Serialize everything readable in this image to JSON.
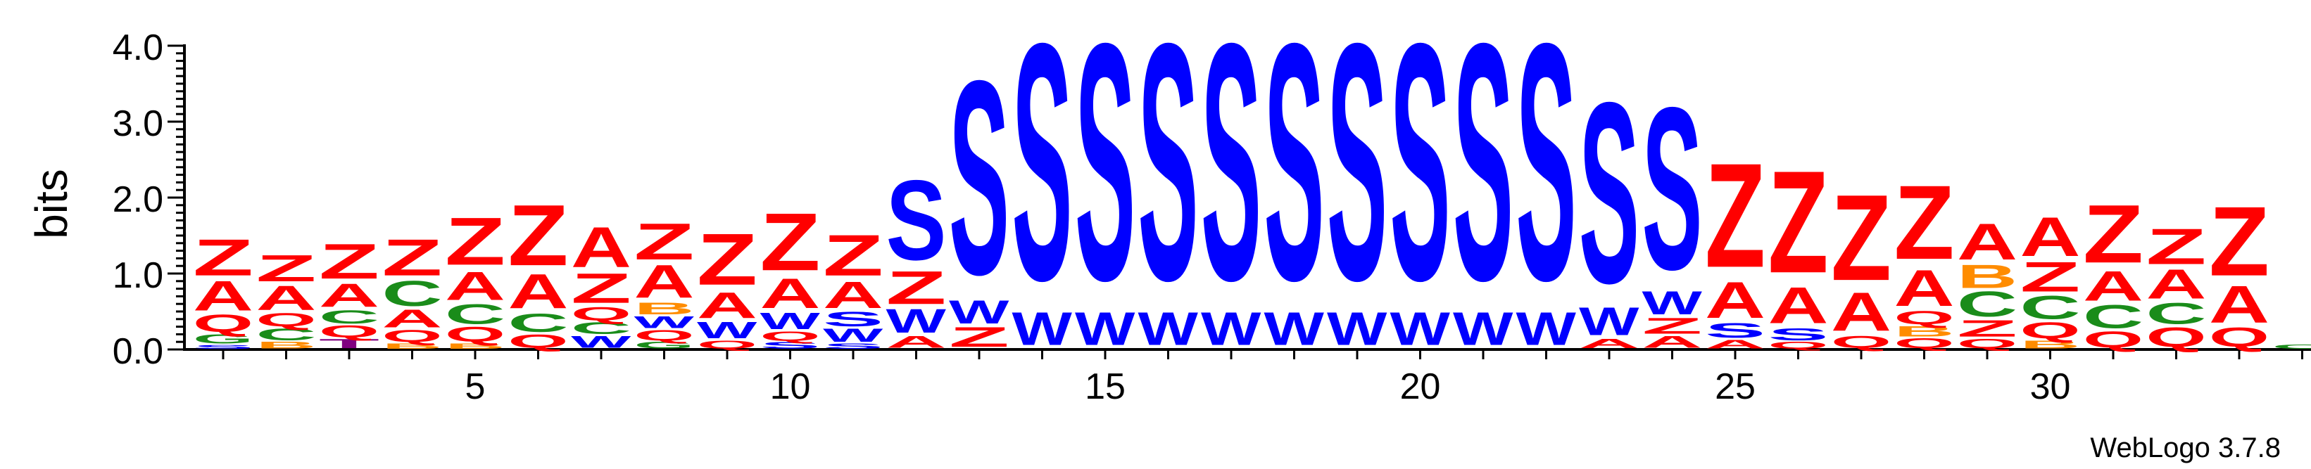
{
  "chart_data": {
    "type": "sequence-logo",
    "ylabel": "bits",
    "ylim": [
      0,
      4.0
    ],
    "y_ticks": [
      "0.0",
      "1.0",
      "2.0",
      "3.0",
      "4.0"
    ],
    "x_ticks": [
      "5",
      "10",
      "15",
      "20",
      "25",
      "30"
    ],
    "footer": "WebLogo 3.7.8",
    "colors": {
      "Z": "#ff0000",
      "A": "#ff0000",
      "Q": "#ff0000",
      "C": "#1a8c1a",
      "G": "#1a8c1a",
      "S": "#0000ff",
      "W": "#0000ff",
      "B": "#ff8c00",
      "T": "#800080",
      "other": "#ff8c00"
    },
    "positions": [
      {
        "pos": 1,
        "stack": [
          [
            "S",
            0.06
          ],
          [
            "G",
            0.14
          ],
          [
            "Q",
            0.26
          ],
          [
            "A",
            0.45
          ],
          [
            "Z",
            0.55
          ]
        ]
      },
      {
        "pos": 2,
        "stack": [
          [
            "B",
            0.1
          ],
          [
            "C",
            0.18
          ],
          [
            "Q",
            0.2
          ],
          [
            "A",
            0.37
          ],
          [
            "Z",
            0.4
          ]
        ]
      },
      {
        "pos": 3,
        "stack": [
          [
            "T",
            0.14
          ],
          [
            "Q",
            0.18
          ],
          [
            "C",
            0.2
          ],
          [
            "A",
            0.35
          ],
          [
            "Z",
            0.53
          ]
        ]
      },
      {
        "pos": 4,
        "stack": [
          [
            "B",
            0.08
          ],
          [
            "Q",
            0.18
          ],
          [
            "A",
            0.27
          ],
          [
            "C",
            0.38
          ],
          [
            "Z",
            0.55
          ]
        ]
      },
      {
        "pos": 5,
        "stack": [
          [
            "B",
            0.08
          ],
          [
            "Q",
            0.22
          ],
          [
            "C",
            0.3
          ],
          [
            "A",
            0.43
          ],
          [
            "Z",
            0.72
          ]
        ]
      },
      {
        "pos": 6,
        "stack": [
          [
            "Q",
            0.2
          ],
          [
            "C",
            0.28
          ],
          [
            "A",
            0.52
          ],
          [
            "Z",
            0.92
          ]
        ]
      },
      {
        "pos": 7,
        "stack": [
          [
            "W",
            0.18
          ],
          [
            "C",
            0.18
          ],
          [
            "Q",
            0.2
          ],
          [
            "Z",
            0.45
          ],
          [
            "A",
            0.61
          ]
        ]
      },
      {
        "pos": 8,
        "stack": [
          [
            "G",
            0.1
          ],
          [
            "Q",
            0.16
          ],
          [
            "W",
            0.18
          ],
          [
            "B",
            0.18
          ],
          [
            "A",
            0.5
          ],
          [
            "Z",
            0.55
          ]
        ]
      },
      {
        "pos": 9,
        "stack": [
          [
            "Q",
            0.12
          ],
          [
            "W",
            0.25
          ],
          [
            "A",
            0.39
          ],
          [
            "Z",
            0.78
          ]
        ]
      },
      {
        "pos": 10,
        "stack": [
          [
            "S",
            0.1
          ],
          [
            "Q",
            0.14
          ],
          [
            "W",
            0.25
          ],
          [
            "A",
            0.45
          ],
          [
            "Z",
            0.87
          ]
        ]
      },
      {
        "pos": 11,
        "stack": [
          [
            "S",
            0.08
          ],
          [
            "W",
            0.2
          ],
          [
            "S",
            0.22
          ],
          [
            "A",
            0.4
          ],
          [
            "Z",
            0.62
          ]
        ]
      },
      {
        "pos": 12,
        "stack": [
          [
            "A",
            0.18
          ],
          [
            "W",
            0.36
          ],
          [
            "Z",
            0.5
          ],
          [
            "S",
            1.21
          ]
        ]
      },
      {
        "pos": 13,
        "stack": [
          [
            "Z",
            0.3
          ],
          [
            "W",
            0.35
          ],
          [
            "S",
            2.94
          ]
        ]
      },
      {
        "pos": 14,
        "stack": [
          [
            "W",
            0.5
          ],
          [
            "S",
            3.59
          ]
        ]
      },
      {
        "pos": 15,
        "stack": [
          [
            "W",
            0.5
          ],
          [
            "S",
            3.59
          ]
        ]
      },
      {
        "pos": 16,
        "stack": [
          [
            "W",
            0.5
          ],
          [
            "S",
            3.59
          ]
        ]
      },
      {
        "pos": 17,
        "stack": [
          [
            "W",
            0.5
          ],
          [
            "S",
            3.59
          ]
        ]
      },
      {
        "pos": 18,
        "stack": [
          [
            "W",
            0.5
          ],
          [
            "S",
            3.59
          ]
        ]
      },
      {
        "pos": 19,
        "stack": [
          [
            "W",
            0.5
          ],
          [
            "S",
            3.59
          ]
        ]
      },
      {
        "pos": 20,
        "stack": [
          [
            "W",
            0.5
          ],
          [
            "S",
            3.59
          ]
        ]
      },
      {
        "pos": 21,
        "stack": [
          [
            "W",
            0.5
          ],
          [
            "S",
            3.59
          ]
        ]
      },
      {
        "pos": 22,
        "stack": [
          [
            "W",
            0.5
          ],
          [
            "S",
            3.59
          ]
        ]
      },
      {
        "pos": 23,
        "stack": [
          [
            "A",
            0.14
          ],
          [
            "W",
            0.42
          ],
          [
            "S",
            2.74
          ]
        ]
      },
      {
        "pos": 24,
        "stack": [
          [
            "A",
            0.18
          ],
          [
            "Z",
            0.24
          ],
          [
            "W",
            0.35
          ],
          [
            "S",
            2.46
          ]
        ]
      },
      {
        "pos": 25,
        "stack": [
          [
            "A",
            0.13
          ],
          [
            "S",
            0.22
          ],
          [
            "A",
            0.55
          ],
          [
            "Z",
            1.58
          ]
        ]
      },
      {
        "pos": 26,
        "stack": [
          [
            "Q",
            0.1
          ],
          [
            "S",
            0.18
          ],
          [
            "A",
            0.55
          ],
          [
            "Z",
            1.55
          ]
        ]
      },
      {
        "pos": 27,
        "stack": [
          [
            "Q",
            0.18
          ],
          [
            "A",
            0.58
          ],
          [
            "Z",
            1.3
          ]
        ]
      },
      {
        "pos": 28,
        "stack": [
          [
            "Q",
            0.15
          ],
          [
            "B",
            0.16
          ],
          [
            "Q",
            0.2
          ],
          [
            "A",
            0.55
          ],
          [
            "Z",
            1.12
          ]
        ]
      },
      {
        "pos": 29,
        "stack": [
          [
            "Q",
            0.14
          ],
          [
            "Z",
            0.25
          ],
          [
            "C",
            0.38
          ],
          [
            "B",
            0.35
          ],
          [
            "A",
            0.55
          ]
        ]
      },
      {
        "pos": 30,
        "stack": [
          [
            "B",
            0.12
          ],
          [
            "Q",
            0.24
          ],
          [
            "C",
            0.35
          ],
          [
            "Z",
            0.45
          ],
          [
            "A",
            0.59
          ]
        ]
      },
      {
        "pos": 31,
        "stack": [
          [
            "Q",
            0.24
          ],
          [
            "C",
            0.35
          ],
          [
            "A",
            0.45
          ],
          [
            "Z",
            0.88
          ]
        ]
      },
      {
        "pos": 32,
        "stack": [
          [
            "Q",
            0.3
          ],
          [
            "C",
            0.32
          ],
          [
            "A",
            0.44
          ],
          [
            "Z",
            0.54
          ]
        ]
      },
      {
        "pos": 33,
        "stack": [
          [
            "Q",
            0.29
          ],
          [
            "A",
            0.56
          ],
          [
            "Z",
            1.05
          ]
        ]
      },
      {
        "pos": 34,
        "stack": [
          [
            "C",
            0.06
          ]
        ]
      }
    ]
  }
}
